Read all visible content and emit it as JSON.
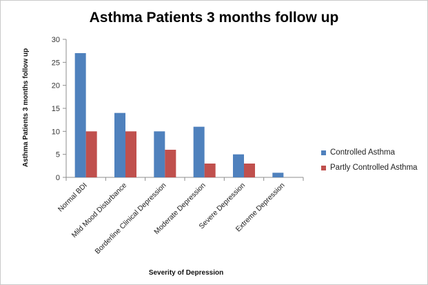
{
  "chart_data": {
    "type": "bar",
    "title": "Asthma Patients 3 months follow up",
    "xlabel": "Severity  of Depression",
    "ylabel": "Asthma Patients 3 months follow up",
    "categories": [
      "Normal BDI",
      "Mild Mood Disturbance",
      "Borderline Clinical Depression",
      "Moderate Depression",
      "Severe Depression",
      "Extreme Depression"
    ],
    "series": [
      {
        "name": "Controlled Asthma",
        "values": [
          27,
          14,
          10,
          11,
          5,
          1
        ],
        "color": "#4f81bd"
      },
      {
        "name": "Partly Controlled Asthma",
        "values": [
          10,
          10,
          6,
          3,
          3,
          0
        ],
        "color": "#c0504d"
      }
    ],
    "ylim": [
      0,
      30
    ],
    "yticks": [
      0,
      5,
      10,
      15,
      20,
      25,
      30
    ],
    "grid": false,
    "legend_position": "right"
  }
}
